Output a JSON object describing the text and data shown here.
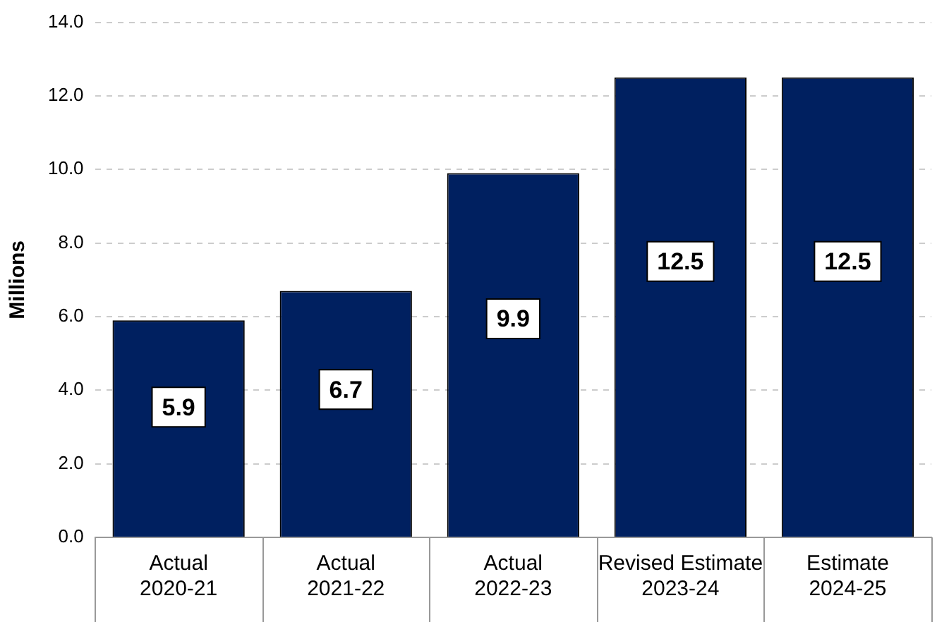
{
  "chart_data": {
    "type": "bar",
    "ylabel": "Millions",
    "categories": [
      "Actual\n2020-21",
      "Actual\n2021-22",
      "Actual\n2022-23",
      "Revised Estimate\n2023-24",
      "Estimate\n2024-25"
    ],
    "values": [
      5.9,
      6.7,
      9.9,
      12.5,
      12.5
    ],
    "color": "#002060",
    "data_labels": true,
    "ylim": [
      0,
      14
    ],
    "yticks": [
      {
        "value": 0,
        "label": "0.0"
      },
      {
        "value": 2,
        "label": "2.0"
      },
      {
        "value": 4,
        "label": "4.0"
      },
      {
        "value": 6,
        "label": "6.0"
      },
      {
        "value": 8,
        "label": "8.0"
      },
      {
        "value": 10,
        "label": "10.0"
      },
      {
        "value": 12,
        "label": "12.0"
      },
      {
        "value": 14,
        "label": "14.0"
      }
    ],
    "grid": "y",
    "legend": false
  }
}
